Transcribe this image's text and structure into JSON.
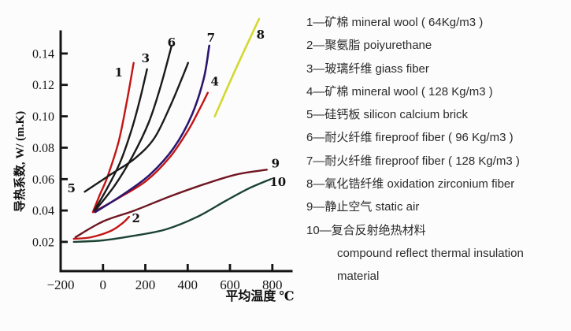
{
  "figure": {
    "background": "#fcfcfc",
    "description_visible_text_only": true
  },
  "chart_data": {
    "type": "line",
    "title": "",
    "xlabel": "平均温度 ℃",
    "ylabel": "导热系数, W/ (m.K)",
    "xlim": [
      -200,
      890
    ],
    "ylim": [
      0.0014,
      0.154
    ],
    "grid": false,
    "legend_position": "right-panel",
    "xticks": [
      {
        "v": -200,
        "label": "−200",
        "mark": false
      },
      {
        "v": 0,
        "label": "0",
        "mark": true
      },
      {
        "v": 200,
        "label": "200",
        "mark": true
      },
      {
        "v": 400,
        "label": "400",
        "mark": true
      },
      {
        "v": 600,
        "label": "600",
        "mark": true
      },
      {
        "v": 800,
        "label": "800",
        "mark": true
      }
    ],
    "yticks": [
      {
        "v": 0.02,
        "label": "0.02"
      },
      {
        "v": 0.04,
        "label": "0.04"
      },
      {
        "v": 0.06,
        "label": "0.06"
      },
      {
        "v": 0.08,
        "label": "0.08"
      },
      {
        "v": 0.1,
        "label": "0.10"
      },
      {
        "v": 0.12,
        "label": "0.12"
      },
      {
        "v": 0.14,
        "label": "0.14"
      }
    ],
    "colors": {
      "red": "#c41414",
      "black": "#1a1a1a",
      "purple": "#2c1670",
      "yellow": "#d4d830",
      "maroon": "#6f1622",
      "green": "#1b4232"
    },
    "series": [
      {
        "id": "1",
        "name": "mineral wool 64Kg/m3",
        "color": "#c41414",
        "width": 2.4,
        "label_pos": [
          74,
          0.128
        ],
        "points": [
          [
            -48,
            0.039
          ],
          [
            -15,
            0.05
          ],
          [
            20,
            0.061
          ],
          [
            74,
            0.084
          ],
          [
            112,
            0.109
          ],
          [
            145,
            0.134
          ]
        ]
      },
      {
        "id": "2",
        "name": "poiyurethane",
        "color": "#c41414",
        "width": 2.4,
        "label_pos": [
          156,
          0.035
        ],
        "points": [
          [
            -138,
            0.022
          ],
          [
            -56,
            0.023
          ],
          [
            37,
            0.027
          ],
          [
            93,
            0.032
          ],
          [
            123,
            0.036
          ]
        ]
      },
      {
        "id": "3",
        "name": "giass fiber",
        "color": "#1a1a1a",
        "width": 2.4,
        "label_pos": [
          201,
          0.137
        ],
        "points": [
          [
            -41,
            0.04
          ],
          [
            19,
            0.054
          ],
          [
            82,
            0.071
          ],
          [
            134,
            0.091
          ],
          [
            175,
            0.111
          ],
          [
            208,
            0.13
          ]
        ]
      },
      {
        "id": "4",
        "name": "mineral wool 128 Kg/m3",
        "color": "#c41414",
        "width": 2.4,
        "label_pos": [
          528,
          0.122
        ],
        "points": [
          [
            -45,
            0.039
          ],
          [
            74,
            0.048
          ],
          [
            205,
            0.059
          ],
          [
            316,
            0.074
          ],
          [
            402,
            0.091
          ],
          [
            454,
            0.104
          ],
          [
            495,
            0.115
          ]
        ]
      },
      {
        "id": "5",
        "name": "silicon calcium brick",
        "color": "#1a1a1a",
        "width": 2.4,
        "label_pos": [
          -149,
          0.054
        ],
        "points": [
          [
            -86,
            0.052
          ],
          [
            37,
            0.063
          ],
          [
            149,
            0.073
          ],
          [
            242,
            0.086
          ],
          [
            316,
            0.106
          ],
          [
            372,
            0.124
          ],
          [
            402,
            0.134
          ]
        ]
      },
      {
        "id": "6",
        "name": "fireproof fiber 96 Kg/m3",
        "color": "#1a1a1a",
        "width": 2.4,
        "label_pos": [
          324,
          0.147
        ],
        "points": [
          [
            -37,
            0.04
          ],
          [
            56,
            0.056
          ],
          [
            141,
            0.075
          ],
          [
            216,
            0.096
          ],
          [
            272,
            0.119
          ],
          [
            324,
            0.145
          ]
        ]
      },
      {
        "id": "7",
        "name": "fireproof fiber 128 Kg/m3",
        "color": "#2c1670",
        "width": 2.6,
        "label_pos": [
          510,
          0.15
        ],
        "points": [
          [
            -37,
            0.039
          ],
          [
            93,
            0.05
          ],
          [
            223,
            0.063
          ],
          [
            335,
            0.08
          ],
          [
            420,
            0.101
          ],
          [
            476,
            0.124
          ],
          [
            502,
            0.145
          ]
        ]
      },
      {
        "id": "8",
        "name": "oxidation zirconium fiber",
        "color": "#d4d830",
        "width": 2.6,
        "label_pos": [
          744,
          0.152
        ],
        "points": [
          [
            528,
            0.1
          ],
          [
            630,
            0.131
          ],
          [
            737,
            0.162
          ]
        ]
      },
      {
        "id": "9",
        "name": "static air",
        "color": "#6f1622",
        "width": 2.4,
        "label_pos": [
          815,
          0.07
        ],
        "points": [
          [
            -130,
            0.023
          ],
          [
            0,
            0.033
          ],
          [
            149,
            0.04
          ],
          [
            316,
            0.049
          ],
          [
            484,
            0.057
          ],
          [
            632,
            0.063
          ],
          [
            774,
            0.066
          ]
        ]
      },
      {
        "id": "10",
        "name": "compound reflect thermal insulation material",
        "color": "#1b4232",
        "width": 2.4,
        "label_pos": [
          826,
          0.058
        ],
        "points": [
          [
            -138,
            0.02
          ],
          [
            0,
            0.021
          ],
          [
            149,
            0.024
          ],
          [
            298,
            0.028
          ],
          [
            446,
            0.036
          ],
          [
            577,
            0.046
          ],
          [
            688,
            0.054
          ],
          [
            792,
            0.06
          ]
        ]
      }
    ]
  },
  "legend": {
    "items": [
      {
        "lines": [
          "1—矿棉 mineral wool ( 64Kg/m3 )"
        ]
      },
      {
        "lines": [
          "2—聚氨脂 poiyurethane"
        ]
      },
      {
        "lines": [
          "3—玻璃纤维 giass fiber"
        ]
      },
      {
        "lines": [
          "4—矿棉 mineral wool ( 128 Kg/m3 )"
        ]
      },
      {
        "lines": [
          "5—硅钙板 silicon calcium brick"
        ]
      },
      {
        "lines": [
          "6—耐火纤维 fireproof fiber ( 96 Kg/m3 )"
        ]
      },
      {
        "lines": [
          "7—耐火纤维 fireproof fiber ( 128 Kg/m3 )"
        ]
      },
      {
        "lines": [
          "8—氧化锆纤维 oxidation zirconium fiber"
        ]
      },
      {
        "lines": [
          "9—静止空气 static air"
        ]
      },
      {
        "lines": [
          "10—复合反射绝热材料",
          "compound reflect thermal insulation",
          "material"
        ]
      }
    ]
  }
}
